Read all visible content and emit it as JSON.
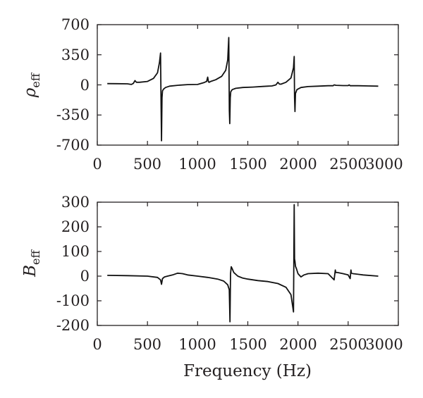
{
  "chart_data": [
    {
      "type": "line",
      "ylabel_main": "ρ",
      "ylabel_sub": "eff",
      "xlim": [
        0,
        3000
      ],
      "ylim": [
        -700,
        700
      ],
      "xticks": [
        "0",
        "500",
        "1000",
        "1500",
        "2000",
        "2500",
        "3000"
      ],
      "yticks": [
        "700",
        "350",
        "0",
        "-350",
        "-700"
      ],
      "series": [
        {
          "x": [
            100,
            200,
            300,
            340,
            360,
            375,
            390,
            420,
            500,
            560,
            600,
            620,
            630,
            636,
            640,
            645,
            650,
            660,
            680,
            720,
            800,
            900,
            1000,
            1060,
            1090,
            1100,
            1108,
            1115,
            1130,
            1180,
            1240,
            1280,
            1300,
            1310,
            1316,
            1320,
            1325,
            1330,
            1345,
            1380,
            1450,
            1550,
            1650,
            1740,
            1780,
            1800,
            1815,
            1830,
            1880,
            1930,
            1955,
            1962,
            1966,
            1970,
            1975,
            1990,
            2030,
            2100,
            2200,
            2300,
            2350,
            2360,
            2380,
            2450,
            2500,
            2510,
            2520,
            2600,
            2700,
            2800
          ],
          "y": [
            15,
            14,
            12,
            5,
            18,
            50,
            30,
            30,
            40,
            75,
            140,
            260,
            370,
            -250,
            -650,
            -150,
            -70,
            -50,
            -30,
            -15,
            -5,
            3,
            5,
            25,
            40,
            90,
            35,
            30,
            40,
            60,
            100,
            170,
            290,
            550,
            -300,
            -450,
            -150,
            -80,
            -55,
            -40,
            -30,
            -25,
            -18,
            -12,
            0,
            30,
            10,
            8,
            30,
            80,
            200,
            330,
            -150,
            -310,
            -100,
            -55,
            -30,
            -20,
            -15,
            -10,
            -10,
            0,
            -5,
            -8,
            -8,
            0,
            -10,
            -10,
            -12,
            -15
          ]
        }
      ]
    },
    {
      "type": "line",
      "ylabel_main": "B",
      "ylabel_sub": "eff",
      "xlabel": "Frequency (Hz)",
      "xlim": [
        0,
        3000
      ],
      "ylim": [
        -200,
        300
      ],
      "xticks": [
        "0",
        "500",
        "1000",
        "1500",
        "2000",
        "2500",
        "3000"
      ],
      "yticks": [
        "300",
        "200",
        "100",
        "0",
        "-100",
        "-200"
      ],
      "series": [
        {
          "x": [
            100,
            300,
            500,
            600,
            630,
            640,
            650,
            670,
            700,
            750,
            800,
            850,
            900,
            1000,
            1100,
            1200,
            1260,
            1300,
            1315,
            1322,
            1328,
            1335,
            1345,
            1360,
            1400,
            1450,
            1500,
            1600,
            1700,
            1800,
            1880,
            1930,
            1955,
            1962,
            1966,
            1970,
            1975,
            1985,
            2000,
            2030,
            2060,
            2100,
            2200,
            2300,
            2360,
            2372,
            2376,
            2390,
            2450,
            2500,
            2520,
            2528,
            2532,
            2550,
            2650,
            2800
          ],
          "y": [
            3,
            2,
            0,
            -5,
            -15,
            -33,
            -10,
            -3,
            0,
            5,
            12,
            10,
            5,
            0,
            -5,
            -12,
            -20,
            -35,
            -55,
            -185,
            10,
            38,
            30,
            15,
            0,
            -8,
            -12,
            -18,
            -22,
            -30,
            -45,
            -75,
            -145,
            290,
            70,
            60,
            40,
            30,
            10,
            -3,
            5,
            10,
            12,
            10,
            -15,
            25,
            15,
            15,
            10,
            5,
            -10,
            25,
            12,
            10,
            5,
            0
          ]
        }
      ]
    }
  ]
}
